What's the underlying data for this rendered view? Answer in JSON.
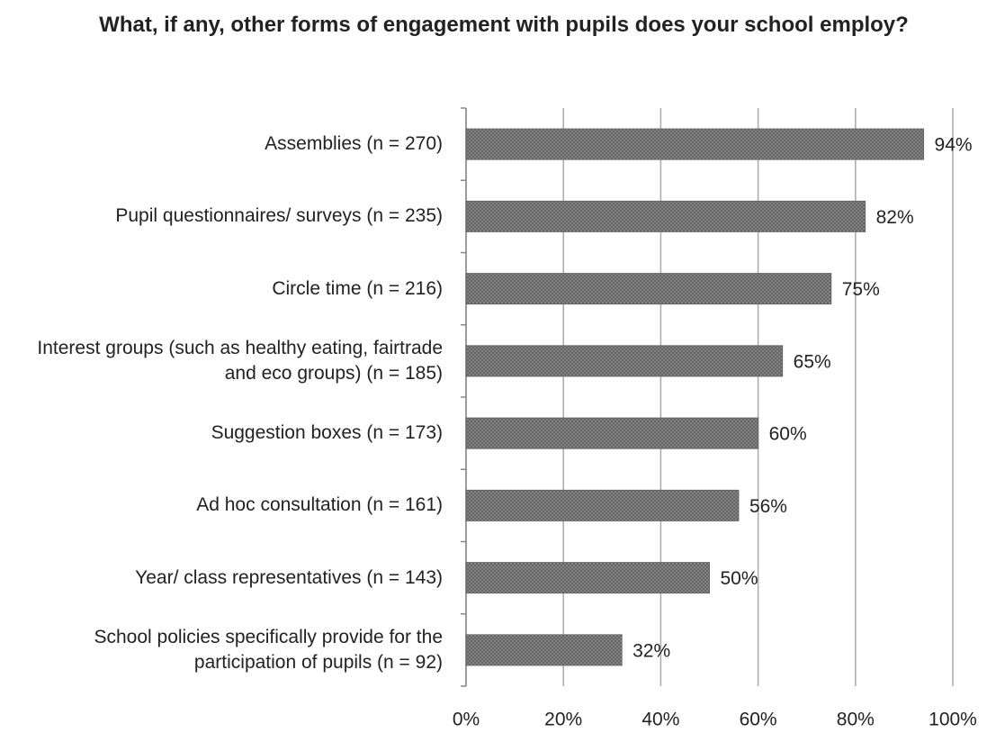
{
  "chart_data": {
    "type": "bar",
    "orientation": "horizontal",
    "title": "What, if any, other forms of engagement with pupils does your school employ?",
    "categories": [
      "Assemblies (n = 270)",
      "Pupil questionnaires/ surveys (n = 235)",
      "Circle time (n = 216)",
      "Interest groups (such as healthy eating, fairtrade and eco groups) (n = 185)",
      "Suggestion boxes (n = 173)",
      "Ad hoc consultation (n = 161)",
      "Year/ class representatives (n = 143)",
      "School policies specifically provide for the participation of pupils (n = 92)"
    ],
    "values": [
      94,
      82,
      75,
      65,
      60,
      56,
      50,
      32
    ],
    "value_labels": [
      "94%",
      "82%",
      "75%",
      "65%",
      "60%",
      "56%",
      "50%",
      "32%"
    ],
    "color": "#8a8a8a",
    "xlim": [
      0,
      100
    ],
    "xticks": [
      {
        "value": 0,
        "label": "0%"
      },
      {
        "value": 20,
        "label": "20%"
      },
      {
        "value": 40,
        "label": "40%"
      },
      {
        "value": 60,
        "label": "60%"
      },
      {
        "value": 80,
        "label": "80%"
      },
      {
        "value": 100,
        "label": "100%"
      }
    ],
    "grid": true
  }
}
